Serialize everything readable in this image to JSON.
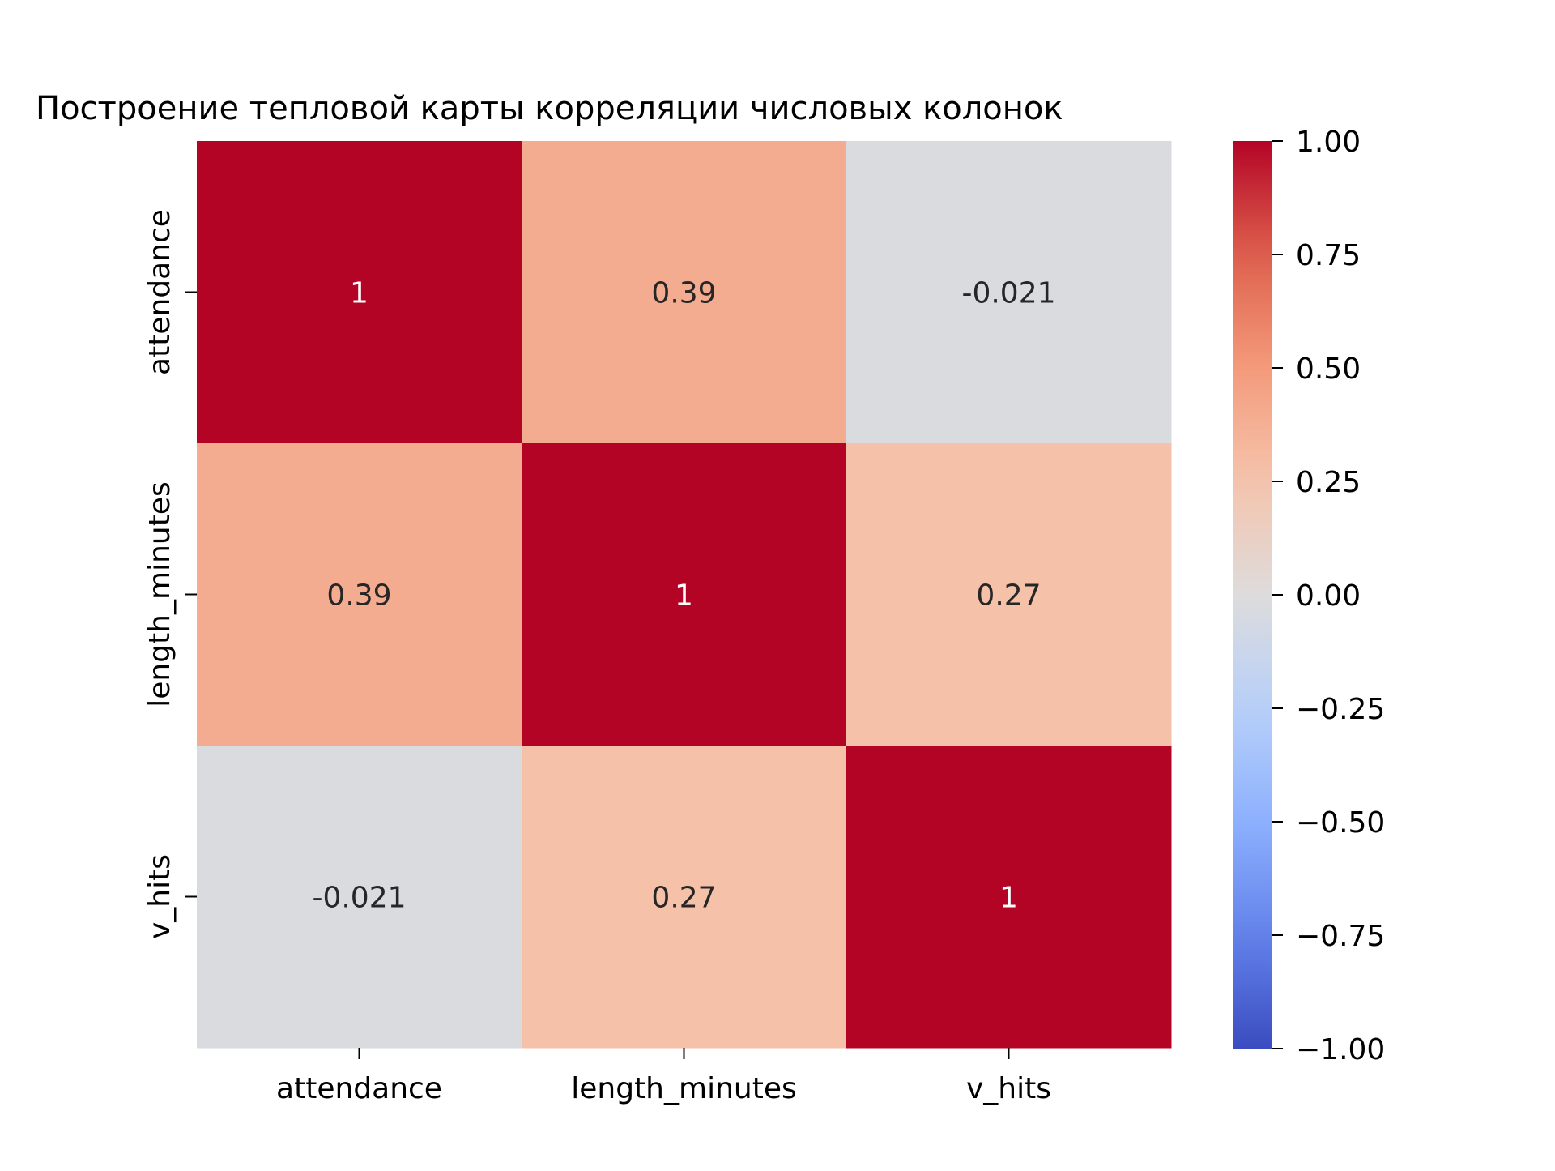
{
  "chart_data": {
    "type": "heatmap",
    "title": "Построение тепловой карты корреляции числовых колонок",
    "xlabel": "",
    "ylabel": "",
    "x_labels": [
      "attendance",
      "length_minutes",
      "v_hits"
    ],
    "y_labels": [
      "attendance",
      "length_minutes",
      "v_hits"
    ],
    "values": [
      [
        1,
        0.39,
        -0.021
      ],
      [
        0.39,
        1,
        0.27
      ],
      [
        -0.021,
        0.27,
        1
      ]
    ],
    "annotations": [
      [
        "1",
        "0.39",
        "-0.021"
      ],
      [
        "0.39",
        "1",
        "0.27"
      ],
      [
        "-0.021",
        "0.27",
        "1"
      ]
    ],
    "colormap": "coolwarm",
    "vmin": -1,
    "vmax": 1,
    "colorbar": {
      "position": "right",
      "ticks": [
        1.0,
        0.75,
        0.5,
        0.25,
        0.0,
        -0.25,
        -0.5,
        -0.75,
        -1.0
      ],
      "tick_labels": [
        "1.00",
        "0.75",
        "0.50",
        "0.25",
        "0.00",
        "−0.25",
        "−0.50",
        "−0.75",
        "−1.00"
      ]
    },
    "grid": false
  }
}
